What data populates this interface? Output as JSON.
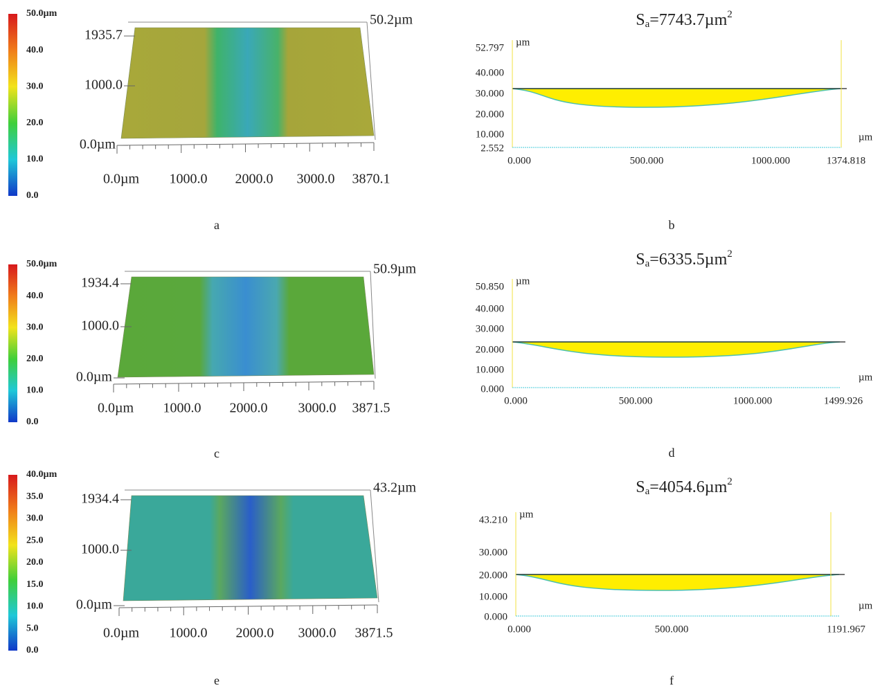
{
  "surfaces": [
    {
      "label": "a",
      "colorbar": [
        "50.0µm",
        "40.0",
        "30.0",
        "20.0",
        "10.0",
        "0.0"
      ],
      "y_labels": [
        "1935.7",
        "1000.0",
        "0.0µm"
      ],
      "z_label": "50.2µm",
      "x_labels": [
        "0.0µm",
        "1000.0",
        "2000.0",
        "3000.0",
        "3870.1"
      ]
    },
    {
      "label": "c",
      "colorbar": [
        "50.0µm",
        "40.0",
        "30.0",
        "20.0",
        "10.0",
        "0.0"
      ],
      "y_labels": [
        "1934.4",
        "1000.0",
        "0.0µm"
      ],
      "z_label": "50.9µm",
      "x_labels": [
        "0.0µm",
        "1000.0",
        "2000.0",
        "3000.0",
        "3871.5"
      ]
    },
    {
      "label": "e",
      "colorbar": [
        "40.0µm",
        "35.0",
        "30.0",
        "25.0",
        "20.0",
        "15.0",
        "10.0",
        "5.0",
        "0.0"
      ],
      "y_labels": [
        "1934.4",
        "1000.0",
        "0.0µm"
      ],
      "z_label": "43.2µm",
      "x_labels": [
        "0.0µm",
        "1000.0",
        "2000.0",
        "3000.0",
        "3871.5"
      ]
    }
  ],
  "profiles": [
    {
      "label": "b",
      "title": {
        "base": "S",
        "sub": "a",
        "rest": "=7743.7µm",
        "sup": "2"
      },
      "y_unit": "µm",
      "x_unit": "µm",
      "y_labels": [
        "52.797",
        "40.000",
        "30.000",
        "20.000",
        "10.000",
        "2.552"
      ],
      "x_labels": [
        "0.000",
        "500.000",
        "1000.000",
        "1374.818"
      ]
    },
    {
      "label": "d",
      "title": {
        "base": "S",
        "sub": "a",
        "rest": "=6335.5µm",
        "sup": "2"
      },
      "y_unit": "µm",
      "x_unit": "µm",
      "y_labels": [
        "50.850",
        "40.000",
        "30.000",
        "20.000",
        "10.000",
        "0.000"
      ],
      "x_labels": [
        "0.000",
        "500.000",
        "1000.000",
        "1499.926"
      ]
    },
    {
      "label": "f",
      "title": {
        "base": "S",
        "sub": "a",
        "rest": "=4054.6µm",
        "sup": "2"
      },
      "y_unit": "µm",
      "x_unit": "µm",
      "y_labels": [
        "43.210",
        "30.000",
        "20.000",
        "10.000",
        "0.000"
      ],
      "x_labels": [
        "0.000",
        "500.000",
        "1191.967"
      ]
    }
  ]
}
